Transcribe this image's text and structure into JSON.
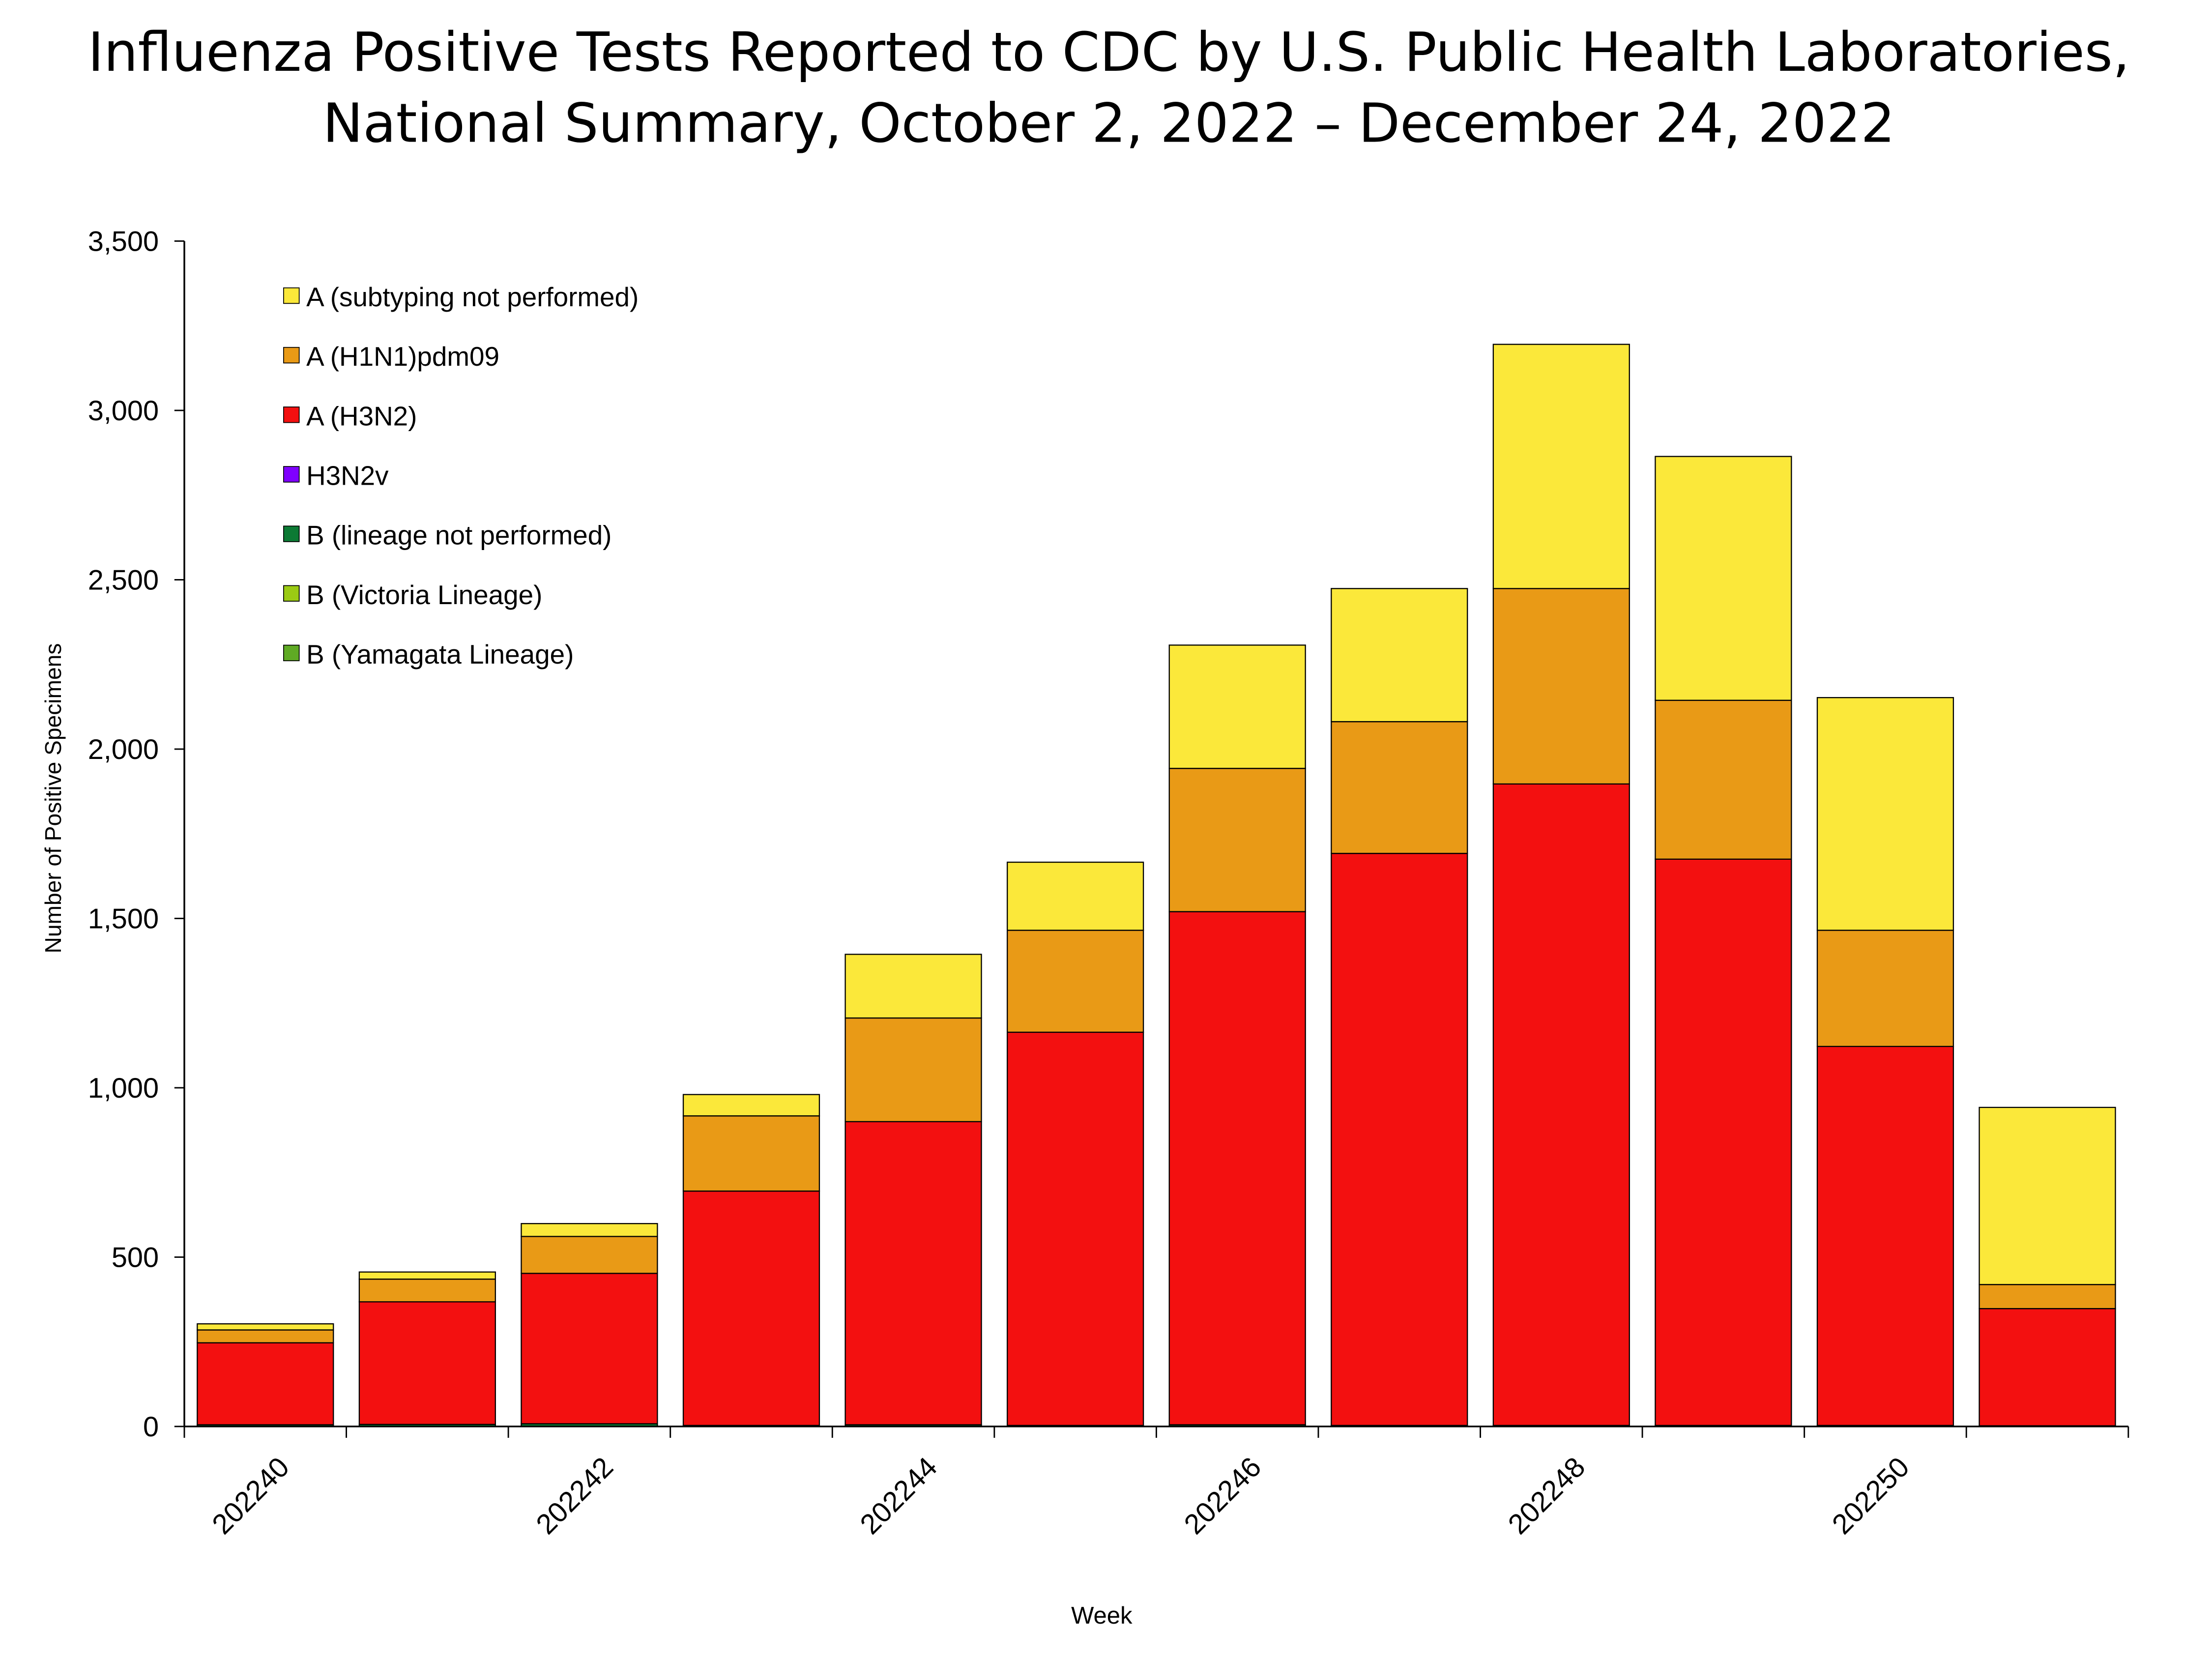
{
  "chart_data": {
    "type": "stacked_bar",
    "title": [
      "Influenza Positive Tests Reported to CDC by U.S. Public Health Laboratories,",
      "National Summary, October 2, 2022 – December 24, 2022"
    ],
    "x_label": "Week",
    "y_label": "Number of Positive Specimens",
    "categories": [
      "202240",
      null,
      "202242",
      null,
      "202244",
      null,
      "202246",
      null,
      "202248",
      null,
      "202250",
      null
    ],
    "series": [
      {
        "name": "A (subtyping not performed)",
        "color": "#FBE83A",
        "values": [
          18,
          21,
          38,
          63,
          188,
          201,
          364,
          393,
          721,
          720,
          687,
          523
        ]
      },
      {
        "name": "A (H1N1)pdm09",
        "color": "#E99A16",
        "values": [
          38,
          67,
          109,
          222,
          306,
          301,
          423,
          389,
          577,
          469,
          343,
          71
        ]
      },
      {
        "name": "A (H3N2)",
        "color": "#F31010",
        "values": [
          242,
          362,
          444,
          692,
          895,
          1161,
          1515,
          1689,
          1894,
          1672,
          1119,
          346
        ]
      },
      {
        "name": "H3N2v",
        "color": "#7F00FF",
        "values": [
          0,
          0,
          0,
          0,
          0,
          0,
          0,
          0,
          0,
          0,
          0,
          0
        ]
      },
      {
        "name": "B (lineage not performed)",
        "color": "#0C7A34",
        "values": [
          5,
          6,
          8,
          3,
          5,
          3,
          5,
          3,
          3,
          3,
          3,
          2
        ]
      },
      {
        "name": "B (Victoria Lineage)",
        "color": "#9BCB14",
        "values": [
          0,
          0,
          0,
          0,
          0,
          0,
          0,
          0,
          0,
          0,
          0,
          0
        ]
      },
      {
        "name": "B (Yamagata Lineage)",
        "color": "#5FAA24",
        "values": [
          0,
          0,
          0,
          0,
          0,
          0,
          0,
          0,
          0,
          0,
          0,
          0
        ]
      }
    ],
    "ylim": [
      0,
      3500
    ],
    "yticks": [
      0,
      500,
      {
        "value": 1000,
        "label": "1,000"
      },
      {
        "value": 1500,
        "label": "1,500"
      },
      {
        "value": 2000,
        "label": "2,000"
      },
      {
        "value": 2500,
        "label": "2,500"
      },
      {
        "value": 3000,
        "label": "3,000"
      },
      {
        "value": 3500,
        "label": "3,500"
      }
    ],
    "grid": false,
    "legend": "upper left"
  }
}
